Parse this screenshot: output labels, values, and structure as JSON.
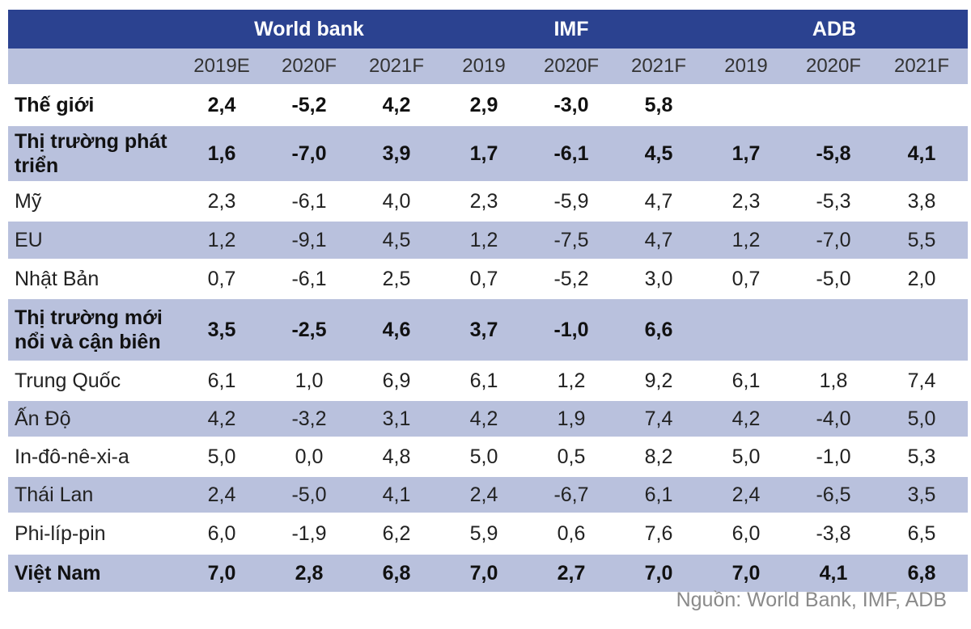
{
  "chart_data": {
    "type": "table",
    "groups": [
      "World bank",
      "IMF",
      "ADB"
    ],
    "columns": [
      "2019E",
      "2020F",
      "2021F",
      "2019",
      "2020F",
      "2021F",
      "2019",
      "2020F",
      "2021F"
    ],
    "rows": [
      {
        "label": "Thế giới",
        "values": [
          "2,4",
          "-5,2",
          "4,2",
          "2,9",
          "-3,0",
          "5,8",
          "",
          "",
          ""
        ],
        "bold": true,
        "shade": false,
        "height": 48
      },
      {
        "label": "Thị trường phát triển",
        "values": [
          "1,6",
          "-7,0",
          "3,9",
          "1,7",
          "-6,1",
          "4,5",
          "1,7",
          "-5,8",
          "4,1"
        ],
        "bold": true,
        "shade": true,
        "height": 68
      },
      {
        "label": "Mỹ",
        "values": [
          "2,3",
          "-6,1",
          "4,0",
          "2,3",
          "-5,9",
          "4,7",
          "2,3",
          "-5,3",
          "3,8"
        ],
        "bold": false,
        "shade": false,
        "height": 46
      },
      {
        "label": "EU",
        "values": [
          "1,2",
          "-9,1",
          "4,5",
          "1,2",
          "-7,5",
          "4,7",
          "1,2",
          "-7,0",
          "5,5"
        ],
        "bold": false,
        "shade": true,
        "height": 46
      },
      {
        "label": "Nhật Bản",
        "values": [
          "0,7",
          "-6,1",
          "2,5",
          "0,7",
          "-5,2",
          "3,0",
          "0,7",
          "-5,0",
          "2,0"
        ],
        "bold": false,
        "shade": false,
        "height": 46
      },
      {
        "label": "Thị trường mới nổi và cận biên",
        "values": [
          "3,5",
          "-2,5",
          "4,6",
          "3,7",
          "-1,0",
          "6,6",
          "",
          "",
          ""
        ],
        "bold": true,
        "shade": true,
        "height": 76
      },
      {
        "label": "Trung Quốc",
        "values": [
          "6,1",
          "1,0",
          "6,9",
          "6,1",
          "1,2",
          "9,2",
          "6,1",
          "1,8",
          "7,4"
        ],
        "bold": false,
        "shade": false,
        "height": 46
      },
      {
        "label": "Ấn Độ",
        "values": [
          "4,2",
          "-3,2",
          "3,1",
          "4,2",
          "1,9",
          "7,4",
          "4,2",
          "-4,0",
          "5,0"
        ],
        "bold": false,
        "shade": true,
        "height": 44
      },
      {
        "label": "In-đô-nê-xi-a",
        "values": [
          "5,0",
          "0,0",
          "4,8",
          "5,0",
          "0,5",
          "8,2",
          "5,0",
          "-1,0",
          "5,3"
        ],
        "bold": false,
        "shade": false,
        "height": 46
      },
      {
        "label": "Thái Lan",
        "values": [
          "2,4",
          "-5,0",
          "4,1",
          "2,4",
          "-6,7",
          "6,1",
          "2,4",
          "-6,5",
          "3,5"
        ],
        "bold": false,
        "shade": true,
        "height": 44
      },
      {
        "label": "Phi-líp-pin",
        "values": [
          "6,0",
          "-1,9",
          "6,2",
          "5,9",
          "0,6",
          "7,6",
          "6,0",
          "-3,8",
          "6,5"
        ],
        "bold": false,
        "shade": false,
        "height": 48
      },
      {
        "label": "Việt Nam",
        "values": [
          "7,0",
          "2,8",
          "6,8",
          "7,0",
          "2,7",
          "7,0",
          "7,0",
          "4,1",
          "6,8"
        ],
        "bold": true,
        "shade": true,
        "height": 46
      }
    ]
  },
  "source": "Nguồn: World Bank, IMF, ADB"
}
